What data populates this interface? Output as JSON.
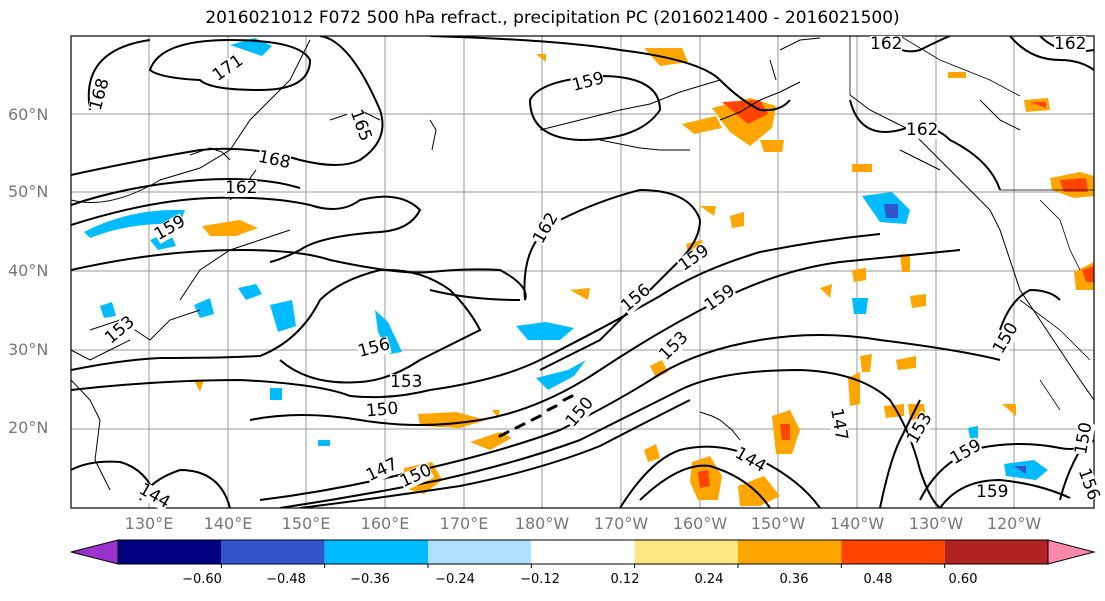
{
  "title": "2016021012 F072 500 hPa refract., precipitation PC (2016021400 - 2016021500)",
  "map": {
    "lon_labels": [
      "130°E",
      "140°E",
      "150°E",
      "160°E",
      "170°E",
      "180°W",
      "170°W",
      "160°W",
      "150°W",
      "140°W",
      "130°W",
      "120°W"
    ],
    "lat_labels": [
      "60°N",
      "50°N",
      "40°N",
      "30°N",
      "20°N"
    ],
    "contour_labels": [
      "171",
      "168",
      "165",
      "168",
      "162",
      "159",
      "159",
      "162",
      "159",
      "156",
      "159",
      "153",
      "153",
      "156",
      "150",
      "153",
      "150",
      "147",
      "150",
      "144",
      "147",
      "153",
      "159",
      "159",
      "150",
      "144",
      "162",
      "150",
      "162",
      "156",
      "162"
    ]
  },
  "colorbar": {
    "colors": [
      "#9933cc",
      "#000080",
      "#3355cc",
      "#00bbff",
      "#b0e0ff",
      "#ffffff",
      "#ffe680",
      "#ffa500",
      "#ff4400",
      "#b22222",
      "#ff88aa"
    ],
    "ticks": [
      "−0.60",
      "−0.48",
      "−0.36",
      "−0.24",
      "−0.12",
      "0.12",
      "0.24",
      "0.36",
      "0.48",
      "0.60"
    ]
  }
}
